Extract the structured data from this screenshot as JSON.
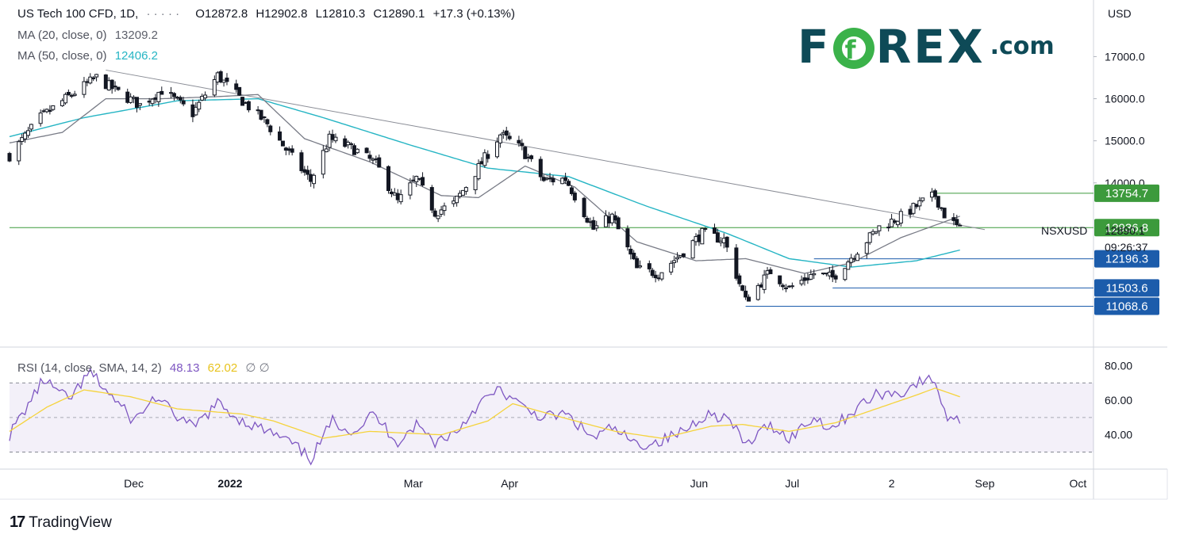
{
  "header": {
    "symbol": "US Tech 100 CFD, 1D,",
    "dots": "· · · · ·",
    "open": "O12872.8",
    "high": "H12902.8",
    "low": "L12810.3",
    "close": "C12890.1",
    "change": "+17.3 (+0.13%)",
    "ma20_label": "MA (20, close, 0)",
    "ma20_value": "13209.2",
    "ma50_label": "MA (50, close, 0)",
    "ma50_value": "12406.2",
    "rsi_label": "RSI (14, close, SMA, 14, 2)",
    "rsi_value": "48.13",
    "rsi_ma_value": "62.02",
    "rsi_extra": "∅ ∅"
  },
  "logo": {
    "part1": "F",
    "part2": "REX",
    "suffix": ".com",
    "ring_letter": "f"
  },
  "footer": {
    "brand": "TradingView",
    "mark": "17"
  },
  "colors": {
    "up": "#ffffff",
    "down": "#131722",
    "ma20": "#787b86",
    "ma50": "#26b5c4",
    "rsi": "#7e57c2",
    "rsi_ma": "#f5d33c",
    "support": "#1c5cab",
    "resistance": "#3c9a3c",
    "logo_text": "#0e4a57",
    "logo_green": "#3bb24a"
  },
  "chart_data": [
    {
      "type": "candlestick",
      "ylabel": "USD",
      "ylim": [
        10100,
        18100
      ],
      "y_ticks": [
        "17000.0",
        "16000.0",
        "15000.0",
        "14000.0"
      ],
      "x_ticks": [
        "Dec",
        "2022",
        "Mar",
        "Apr",
        "Jun",
        "Jul",
        "2",
        "Sep",
        "Oct"
      ],
      "x_tick_dates": [
        "2021-12-01",
        "2022-01-01",
        "2022-03-01",
        "2022-04-01",
        "2022-06-01",
        "2022-07-01",
        "2022-08-02",
        "2022-09-01",
        "2022-10-01"
      ],
      "date_range": [
        "2021-10-22",
        "2022-10-06"
      ],
      "last_date": "2022-08-24",
      "series_label": "NSXUSD",
      "last_price": "12890.1",
      "countdown": "09:26:37",
      "price_labels": [
        {
          "text": "13754.7",
          "value": 13754.7,
          "kind": "resistance"
        },
        {
          "text": "12936.8",
          "value": 12936.8,
          "kind": "ma"
        },
        {
          "text": "12196.3",
          "value": 12196.3,
          "kind": "support"
        },
        {
          "text": "11503.6",
          "value": 11503.6,
          "kind": "support"
        },
        {
          "text": "11068.6",
          "value": 11068.6,
          "kind": "support"
        }
      ],
      "horizontal_lines": [
        {
          "value": 13754.7,
          "from": "2022-08-15",
          "color": "resistance"
        },
        {
          "value": 12936.8,
          "from": "2021-10-22",
          "color": "resistance"
        },
        {
          "value": 12196.3,
          "from": "2022-07-08",
          "color": "support"
        },
        {
          "value": 11503.6,
          "from": "2022-07-14",
          "color": "support"
        },
        {
          "value": 11068.6,
          "from": "2022-06-16",
          "color": "support"
        }
      ],
      "trendline": {
        "from": [
          "2021-11-22",
          16680
        ],
        "to": [
          "2022-09-01",
          12890
        ]
      },
      "anchors": [
        [
          "2021-10-22",
          14650
        ],
        [
          "2021-11-01",
          15550
        ],
        [
          "2021-11-10",
          16050
        ],
        [
          "2021-11-19",
          16500
        ],
        [
          "2021-11-26",
          16150
        ],
        [
          "2021-12-03",
          15850
        ],
        [
          "2021-12-10",
          16200
        ],
        [
          "2021-12-20",
          15650
        ],
        [
          "2021-12-28",
          16550
        ],
        [
          "2022-01-05",
          15950
        ],
        [
          "2022-01-13",
          15400
        ],
        [
          "2022-01-20",
          14700
        ],
        [
          "2022-01-27",
          14050
        ],
        [
          "2022-02-02",
          15050
        ],
        [
          "2022-02-10",
          14800
        ],
        [
          "2022-02-17",
          14450
        ],
        [
          "2022-02-24",
          13550
        ],
        [
          "2022-03-02",
          14100
        ],
        [
          "2022-03-08",
          13300
        ],
        [
          "2022-03-14",
          13500
        ],
        [
          "2022-03-21",
          14250
        ],
        [
          "2022-03-29",
          15150
        ],
        [
          "2022-04-05",
          14800
        ],
        [
          "2022-04-12",
          14050
        ],
        [
          "2022-04-19",
          14100
        ],
        [
          "2022-04-28",
          12900
        ],
        [
          "2022-05-04",
          13200
        ],
        [
          "2022-05-12",
          11950
        ],
        [
          "2022-05-19",
          11850
        ],
        [
          "2022-05-26",
          12300
        ],
        [
          "2022-06-02",
          12800
        ],
        [
          "2022-06-09",
          12650
        ],
        [
          "2022-06-16",
          11200
        ],
        [
          "2022-06-24",
          11900
        ],
        [
          "2022-06-30",
          11500
        ],
        [
          "2022-07-08",
          11850
        ],
        [
          "2022-07-14",
          11750
        ],
        [
          "2022-07-22",
          12400
        ],
        [
          "2022-07-29",
          12950
        ],
        [
          "2022-08-05",
          13200
        ],
        [
          "2022-08-12",
          13550
        ],
        [
          "2022-08-16",
          13700
        ],
        [
          "2022-08-19",
          13250
        ],
        [
          "2022-08-24",
          12890
        ]
      ],
      "ma_anchors": {
        "ma20": [
          [
            "2021-10-22",
            14950
          ],
          [
            "2021-11-08",
            15200
          ],
          [
            "2021-11-22",
            16000
          ],
          [
            "2021-12-10",
            16000
          ],
          [
            "2021-12-28",
            16050
          ],
          [
            "2022-01-10",
            16100
          ],
          [
            "2022-01-25",
            15050
          ],
          [
            "2022-02-15",
            14500
          ],
          [
            "2022-03-10",
            13700
          ],
          [
            "2022-03-22",
            13650
          ],
          [
            "2022-04-06",
            14400
          ],
          [
            "2022-04-22",
            13900
          ],
          [
            "2022-05-12",
            12600
          ],
          [
            "2022-05-31",
            12150
          ],
          [
            "2022-06-16",
            12200
          ],
          [
            "2022-07-05",
            11850
          ],
          [
            "2022-07-20",
            12100
          ],
          [
            "2022-08-05",
            12700
          ],
          [
            "2022-08-24",
            13209
          ]
        ],
        "ma50": [
          [
            "2021-10-22",
            15100
          ],
          [
            "2021-11-15",
            15550
          ],
          [
            "2021-12-15",
            15950
          ],
          [
            "2022-01-10",
            16000
          ],
          [
            "2022-01-31",
            15550
          ],
          [
            "2022-02-28",
            14900
          ],
          [
            "2022-03-25",
            14350
          ],
          [
            "2022-04-20",
            14150
          ],
          [
            "2022-05-15",
            13450
          ],
          [
            "2022-06-10",
            12800
          ],
          [
            "2022-06-30",
            12200
          ],
          [
            "2022-07-20",
            12000
          ],
          [
            "2022-08-10",
            12150
          ],
          [
            "2022-08-24",
            12406
          ]
        ]
      }
    },
    {
      "type": "line",
      "title": "RSI (14, close, SMA, 14, 2)",
      "ylim": [
        22,
        88
      ],
      "y_ticks": [
        "80.00",
        "60.00",
        "40.00"
      ],
      "bands": [
        30,
        50,
        70
      ],
      "series": [
        {
          "name": "RSI",
          "color": "rsi",
          "anchors": [
            [
              "2021-10-22",
              40
            ],
            [
              "2021-11-02",
              72
            ],
            [
              "2021-11-10",
              60
            ],
            [
              "2021-11-17",
              76
            ],
            [
              "2021-11-24",
              62
            ],
            [
              "2021-12-01",
              48
            ],
            [
              "2021-12-08",
              62
            ],
            [
              "2021-12-14",
              52
            ],
            [
              "2021-12-20",
              44
            ],
            [
              "2021-12-28",
              58
            ],
            [
              "2022-01-05",
              48
            ],
            [
              "2022-01-13",
              42
            ],
            [
              "2022-01-20",
              36
            ],
            [
              "2022-01-27",
              26
            ],
            [
              "2022-02-03",
              48
            ],
            [
              "2022-02-10",
              42
            ],
            [
              "2022-02-16",
              52
            ],
            [
              "2022-02-24",
              36
            ],
            [
              "2022-03-02",
              46
            ],
            [
              "2022-03-08",
              36
            ],
            [
              "2022-03-15",
              42
            ],
            [
              "2022-03-22",
              58
            ],
            [
              "2022-03-29",
              66
            ],
            [
              "2022-04-05",
              56
            ],
            [
              "2022-04-12",
              50
            ],
            [
              "2022-04-19",
              52
            ],
            [
              "2022-04-28",
              38
            ],
            [
              "2022-05-04",
              44
            ],
            [
              "2022-05-12",
              34
            ],
            [
              "2022-05-19",
              36
            ],
            [
              "2022-05-27",
              42
            ],
            [
              "2022-06-03",
              52
            ],
            [
              "2022-06-10",
              50
            ],
            [
              "2022-06-16",
              34
            ],
            [
              "2022-06-24",
              46
            ],
            [
              "2022-06-30",
              38
            ],
            [
              "2022-07-08",
              50
            ],
            [
              "2022-07-14",
              44
            ],
            [
              "2022-07-22",
              56
            ],
            [
              "2022-07-29",
              64
            ],
            [
              "2022-08-05",
              64
            ],
            [
              "2022-08-10",
              70
            ],
            [
              "2022-08-16",
              72
            ],
            [
              "2022-08-19",
              52
            ],
            [
              "2022-08-24",
              48
            ]
          ]
        },
        {
          "name": "RSI SMA",
          "color": "rsi_ma",
          "anchors": [
            [
              "2021-10-22",
              42
            ],
            [
              "2021-11-03",
              56
            ],
            [
              "2021-11-15",
              66
            ],
            [
              "2021-11-30",
              62
            ],
            [
              "2021-12-15",
              55
            ],
            [
              "2022-01-05",
              52
            ],
            [
              "2022-01-15",
              48
            ],
            [
              "2022-01-31",
              38
            ],
            [
              "2022-02-15",
              42
            ],
            [
              "2022-03-10",
              40
            ],
            [
              "2022-03-25",
              48
            ],
            [
              "2022-04-02",
              58
            ],
            [
              "2022-04-18",
              50
            ],
            [
              "2022-05-05",
              42
            ],
            [
              "2022-05-20",
              38
            ],
            [
              "2022-06-05",
              45
            ],
            [
              "2022-06-15",
              46
            ],
            [
              "2022-06-30",
              42
            ],
            [
              "2022-07-15",
              47
            ],
            [
              "2022-07-28",
              55
            ],
            [
              "2022-08-10",
              63
            ],
            [
              "2022-08-16",
              67
            ],
            [
              "2022-08-24",
              62
            ]
          ]
        }
      ]
    }
  ]
}
